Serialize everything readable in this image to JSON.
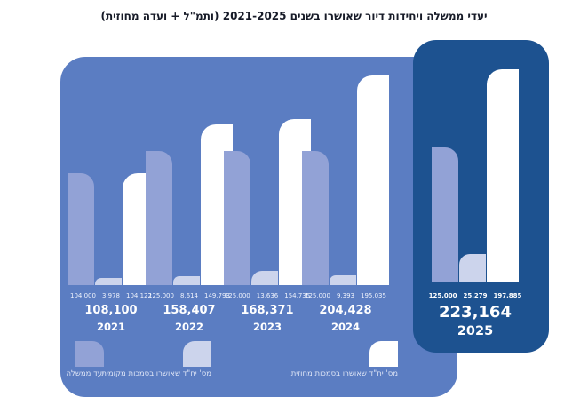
{
  "title": "יעדי ממשלה ויחידות דיור שאושרו בשנים 2021-2025 (ותמ\"ל + ועדה מחוזית)",
  "colors": {
    "main_panel": "#5b7dc2",
    "highlight_panel": "#1d5290",
    "target_bar": "#92a2d6",
    "local_bar": "#ccd4ec",
    "district_bar": "#ffffff",
    "title_text": "#171b28",
    "value_text_main": "#eef2fc",
    "value_text_highlight": "#ffffff",
    "legend_text": "#dde4f5"
  },
  "chart_data": {
    "type": "bar",
    "title": "יעדי ממשלה ויחידות דיור שאושרו בשנים 2021-2025 (ותמ\"ל + ועדה מחוזית)",
    "categories": [
      "2021",
      "2022",
      "2023",
      "2024",
      "2025"
    ],
    "series": [
      {
        "name": "יעד ממשלה",
        "key": "government-target",
        "color": "#92a2d6",
        "values": [
          104000,
          125000,
          125000,
          125000,
          125000
        ],
        "labels": [
          "104,000",
          "125,000",
          "125,000",
          "125,000",
          "125,000"
        ]
      },
      {
        "name": "מס' יח\"ד שאושרו בסמכות מקומית",
        "key": "local-authority-approved",
        "color": "#ccd4ec",
        "values": [
          3978,
          8614,
          13636,
          9393,
          25279
        ],
        "labels": [
          "3,978",
          "8,614",
          "13,636",
          "9,393",
          "25,279"
        ]
      },
      {
        "name": "מס' יח\"ד שאושרו בסמכות מחוזית",
        "key": "district-authority-approved",
        "color": "#ffffff",
        "values": [
          104122,
          149793,
          154735,
          195035,
          197885
        ],
        "labels": [
          "104.122",
          "149,793",
          "154,735",
          "195,035",
          "197,885"
        ]
      }
    ],
    "totals": [
      "108,100",
      "158,407",
      "168,371",
      "204,428",
      "223,164"
    ],
    "highlight_year": "2025",
    "ylim": [
      0,
      200000
    ],
    "grid": false,
    "legend_position": "bottom"
  },
  "legend": {
    "items": [
      {
        "label": "יעד ממשלה",
        "color": "#92a2d6"
      },
      {
        "label": "מס' יח\"ד שאושרו בסמכות מקומית",
        "color": "#ccd4ec"
      },
      {
        "label": "מס' יח\"ד שאושרו בסמכות מחוזית",
        "color": "#ffffff"
      }
    ]
  }
}
